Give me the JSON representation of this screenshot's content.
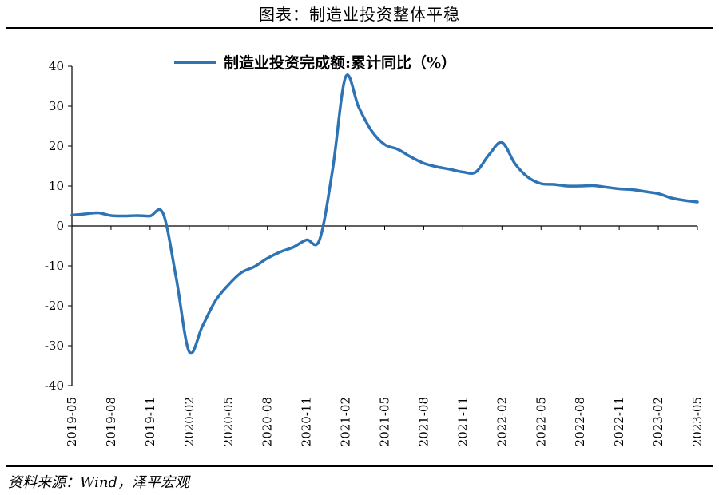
{
  "page_title": "图表：制造业投资整体平稳",
  "source": "资料来源：Wind，泽平宏观",
  "chart_data": {
    "type": "line",
    "title": "",
    "xlabel": "",
    "ylabel": "",
    "ylim": [
      -40,
      40
    ],
    "yticks": [
      40,
      30,
      20,
      10,
      0,
      -10,
      -20,
      -30,
      -40
    ],
    "xticks": [
      "2019-05",
      "2019-08",
      "2019-11",
      "2020-02",
      "2020-05",
      "2020-08",
      "2020-11",
      "2021-02",
      "2021-05",
      "2021-08",
      "2021-11",
      "2022-02",
      "2022-05",
      "2022-08",
      "2022-11",
      "2023-02",
      "2023-05"
    ],
    "grid": false,
    "legend_position": "top",
    "line_color": "#2e74b5",
    "series": [
      {
        "name": "制造业投资完成额:累计同比（%）",
        "x": [
          "2019-05",
          "2019-06",
          "2019-07",
          "2019-08",
          "2019-09",
          "2019-10",
          "2019-11",
          "2019-12",
          "2020-01",
          "2020-02",
          "2020-03",
          "2020-04",
          "2020-05",
          "2020-06",
          "2020-07",
          "2020-08",
          "2020-09",
          "2020-10",
          "2020-11",
          "2020-12",
          "2021-01",
          "2021-02",
          "2021-03",
          "2021-04",
          "2021-05",
          "2021-06",
          "2021-07",
          "2021-08",
          "2021-09",
          "2021-10",
          "2021-11",
          "2021-12",
          "2022-01",
          "2022-02",
          "2022-03",
          "2022-04",
          "2022-05",
          "2022-06",
          "2022-07",
          "2022-08",
          "2022-09",
          "2022-10",
          "2022-11",
          "2022-12",
          "2023-01",
          "2023-02",
          "2023-03",
          "2023-04",
          "2023-05"
        ],
        "values": [
          2.7,
          3.0,
          3.3,
          2.6,
          2.5,
          2.6,
          2.5,
          3.1,
          -13.0,
          -31.5,
          -25.2,
          -18.8,
          -14.8,
          -11.7,
          -10.2,
          -8.1,
          -6.5,
          -5.3,
          -3.5,
          -3.5,
          14.0,
          37.3,
          29.8,
          23.8,
          20.4,
          19.2,
          17.3,
          15.7,
          14.8,
          14.2,
          13.5,
          13.5,
          17.8,
          20.9,
          15.6,
          12.2,
          10.6,
          10.4,
          10.0,
          10.0,
          10.1,
          9.7,
          9.3,
          9.1,
          8.6,
          8.1,
          7.0,
          6.4,
          6.0
        ]
      }
    ]
  }
}
